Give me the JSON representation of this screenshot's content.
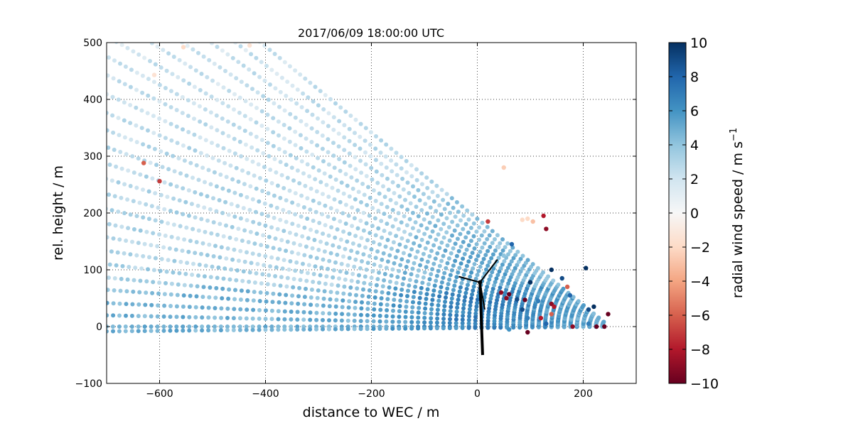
{
  "chart_data": {
    "type": "scatter",
    "title": "2017/06/09 18:00:00 UTC",
    "xlabel": "distance to WEC / m",
    "ylabel": "rel. height / m",
    "xlim": [
      -700,
      300
    ],
    "ylim": [
      -100,
      500
    ],
    "xticks": [
      -600,
      -400,
      -200,
      0,
      200
    ],
    "yticks": [
      -100,
      0,
      100,
      200,
      300,
      400,
      500
    ],
    "grid": true,
    "legend": "none",
    "colorbar": {
      "label": "radial wind speed / m s",
      "label_superscript": "−1",
      "range": [
        -10,
        10
      ],
      "ticks": [
        -10,
        -8,
        -6,
        -4,
        -2,
        0,
        2,
        4,
        6,
        8,
        10
      ],
      "colormap": "RdBu",
      "colors": [
        "#67001f",
        "#b2182b",
        "#d6604d",
        "#f4a582",
        "#fddbc7",
        "#f7f7f7",
        "#d1e5f0",
        "#92c5de",
        "#4393c3",
        "#2166ac",
        "#053061"
      ]
    },
    "scan": {
      "origin": {
        "x": 250,
        "y": 0
      },
      "elevation_angles_deg": [
        0,
        -0.5,
        1.2,
        2.5,
        3.9,
        5.2,
        6.6,
        8,
        9.4,
        10.8,
        12.3,
        13.8,
        15.3,
        16.8,
        18.4,
        20,
        21.6,
        23.3,
        25,
        26.6,
        28.3,
        30,
        31.8,
        33.6,
        35.3,
        37.2
      ],
      "range_gate_spacing_m": 12,
      "typical_value_far": 3.5,
      "typical_value_near": 5
    },
    "points_outliers": [
      {
        "x": -630,
        "y": 288,
        "v": -6
      },
      {
        "x": -600,
        "y": 256,
        "v": -7
      },
      {
        "x": -555,
        "y": 492,
        "v": -2
      },
      {
        "x": -430,
        "y": 495,
        "v": -1.5
      },
      {
        "x": -610,
        "y": 443,
        "v": -1.5
      },
      {
        "x": 20,
        "y": 185,
        "v": -7
      },
      {
        "x": 50,
        "y": 280,
        "v": -2.5
      },
      {
        "x": 85,
        "y": 188,
        "v": -2
      },
      {
        "x": 95,
        "y": 190,
        "v": -2
      },
      {
        "x": 105,
        "y": 185,
        "v": -3
      },
      {
        "x": 125,
        "y": 195,
        "v": -8
      },
      {
        "x": 130,
        "y": 172,
        "v": -9
      },
      {
        "x": 45,
        "y": 60,
        "v": -9
      },
      {
        "x": 60,
        "y": 57,
        "v": -10
      },
      {
        "x": 75,
        "y": 48,
        "v": 9
      },
      {
        "x": 90,
        "y": 47,
        "v": -10
      },
      {
        "x": 100,
        "y": 78,
        "v": 10
      },
      {
        "x": 115,
        "y": 45,
        "v": 7
      },
      {
        "x": 140,
        "y": 40,
        "v": -9
      },
      {
        "x": 145,
        "y": 35,
        "v": -8
      },
      {
        "x": 140,
        "y": 22,
        "v": -6
      },
      {
        "x": 120,
        "y": 15,
        "v": -8
      },
      {
        "x": 140,
        "y": 100,
        "v": 10
      },
      {
        "x": 160,
        "y": 85,
        "v": 9
      },
      {
        "x": 170,
        "y": 70,
        "v": -6
      },
      {
        "x": 175,
        "y": 55,
        "v": 8
      },
      {
        "x": 205,
        "y": 103,
        "v": 10
      },
      {
        "x": 210,
        "y": 30,
        "v": 9
      },
      {
        "x": 220,
        "y": 35,
        "v": 10
      },
      {
        "x": 225,
        "y": 0,
        "v": -10
      },
      {
        "x": 240,
        "y": 0,
        "v": -10
      },
      {
        "x": 247,
        "y": 22,
        "v": -10
      },
      {
        "x": 210,
        "y": 5,
        "v": 7
      },
      {
        "x": 180,
        "y": 0,
        "v": -9
      },
      {
        "x": 95,
        "y": -10,
        "v": -10
      },
      {
        "x": 60,
        "y": -5,
        "v": 6
      },
      {
        "x": 130,
        "y": 5,
        "v": 8
      },
      {
        "x": 85,
        "y": 30,
        "v": 9
      },
      {
        "x": 95,
        "y": 15,
        "v": 7
      },
      {
        "x": 55,
        "y": 50,
        "v": -9
      },
      {
        "x": 40,
        "y": 140,
        "v": 3
      },
      {
        "x": 65,
        "y": 145,
        "v": 8
      },
      {
        "x": 50,
        "y": 125,
        "v": 4
      }
    ],
    "turbine": {
      "tower_base": {
        "x": 10,
        "y": -50
      },
      "hub": {
        "x": 5,
        "y": 78
      },
      "blade_tips": [
        {
          "x": -35,
          "y": 88
        },
        {
          "x": 38,
          "y": 118
        },
        {
          "x": 14,
          "y": 30
        }
      ]
    }
  }
}
